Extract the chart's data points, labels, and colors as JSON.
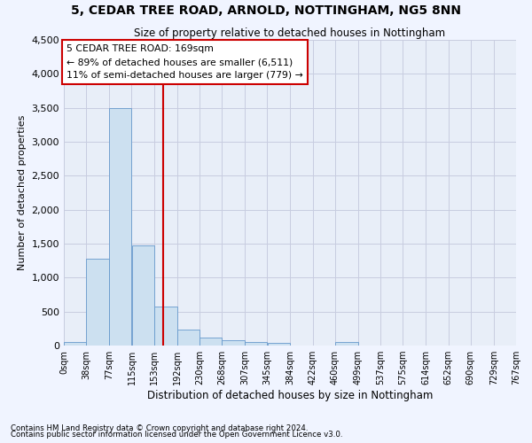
{
  "title": "5, CEDAR TREE ROAD, ARNOLD, NOTTINGHAM, NG5 8NN",
  "subtitle": "Size of property relative to detached houses in Nottingham",
  "xlabel": "Distribution of detached houses by size in Nottingham",
  "ylabel": "Number of detached properties",
  "bar_color": "#cce0f0",
  "bar_edge_color": "#6699cc",
  "background_color": "#e8eef8",
  "grid_color": "#c8cce0",
  "bins": [
    0,
    38,
    77,
    115,
    153,
    192,
    230,
    268,
    307,
    345,
    384,
    422,
    460,
    499,
    537,
    575,
    614,
    652,
    690,
    729,
    767
  ],
  "bin_labels": [
    "0sqm",
    "38sqm",
    "77sqm",
    "115sqm",
    "153sqm",
    "192sqm",
    "230sqm",
    "268sqm",
    "307sqm",
    "345sqm",
    "384sqm",
    "422sqm",
    "460sqm",
    "499sqm",
    "537sqm",
    "575sqm",
    "614sqm",
    "652sqm",
    "690sqm",
    "729sqm",
    "767sqm"
  ],
  "bar_heights": [
    50,
    1280,
    3500,
    1480,
    570,
    230,
    115,
    80,
    55,
    40,
    0,
    0,
    50,
    0,
    0,
    0,
    0,
    0,
    0,
    0
  ],
  "ylim": [
    0,
    4500
  ],
  "yticks": [
    0,
    500,
    1000,
    1500,
    2000,
    2500,
    3000,
    3500,
    4000,
    4500
  ],
  "property_line_x": 169,
  "property_line_color": "#cc0000",
  "annotation_title": "5 CEDAR TREE ROAD: 169sqm",
  "annotation_line1": "← 89% of detached houses are smaller (6,511)",
  "annotation_line2": "11% of semi-detached houses are larger (779) →",
  "annotation_box_color": "#ffffff",
  "annotation_box_edge": "#cc0000",
  "footer1": "Contains HM Land Registry data © Crown copyright and database right 2024.",
  "footer2": "Contains public sector information licensed under the Open Government Licence v3.0."
}
